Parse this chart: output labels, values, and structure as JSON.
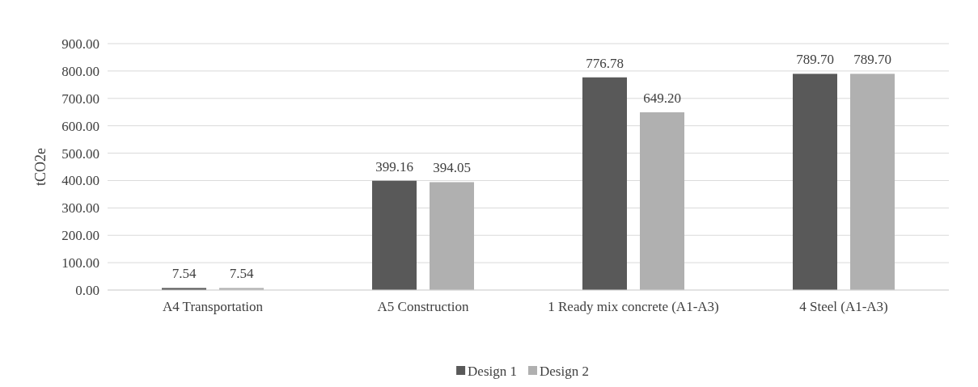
{
  "chart_data": {
    "type": "bar",
    "ylabel": "tCO2e",
    "categories": [
      "A4 Transportation",
      "A5 Construction",
      "1 Ready mix concrete (A1-A3)",
      "4 Steel (A1-A3)"
    ],
    "series": [
      {
        "name": "Design 1",
        "color": "#595959",
        "values": [
          7.54,
          399.16,
          776.78,
          789.7
        ],
        "value_labels": [
          "7.54",
          "399.16",
          "776.78",
          "789.70"
        ]
      },
      {
        "name": "Design 2",
        "color": "#b0b0b0",
        "values": [
          7.54,
          394.05,
          649.2,
          789.7
        ],
        "value_labels": [
          "7.54",
          "394.05",
          "649.20",
          "789.70"
        ]
      }
    ],
    "ylim": [
      0,
      900
    ],
    "yticks": [
      {
        "value": 0,
        "label": "0.00"
      },
      {
        "value": 100,
        "label": "100.00"
      },
      {
        "value": 200,
        "label": "200.00"
      },
      {
        "value": 300,
        "label": "300.00"
      },
      {
        "value": 400,
        "label": "400.00"
      },
      {
        "value": 500,
        "label": "500.00"
      },
      {
        "value": 600,
        "label": "600.00"
      },
      {
        "value": 700,
        "label": "700.00"
      },
      {
        "value": 800,
        "label": "800.00"
      },
      {
        "value": 900,
        "label": "900.00"
      }
    ],
    "grid": "y",
    "legend": "bottom"
  }
}
